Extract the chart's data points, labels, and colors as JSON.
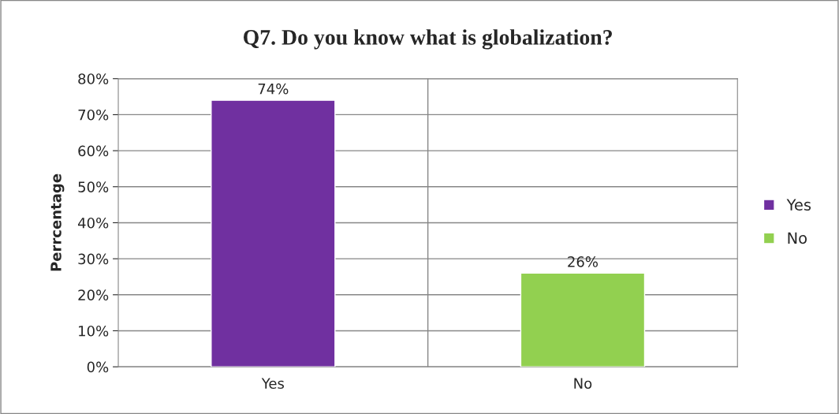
{
  "chart_data": {
    "type": "bar",
    "title": "Q7. Do you know what is globalization?",
    "ylabel": "Perrcentage",
    "categories": [
      "Yes",
      "No"
    ],
    "series": [
      {
        "name": "Yes",
        "color": "#7030a0",
        "values": [
          74,
          null
        ],
        "value_labels": [
          "74%",
          null
        ]
      },
      {
        "name": "No",
        "color": "#92d050",
        "values": [
          null,
          26
        ],
        "value_labels": [
          null,
          "26%"
        ]
      }
    ],
    "ylim": [
      0,
      80
    ],
    "yticks": [
      {
        "value": 0,
        "label": "0%"
      },
      {
        "value": 10,
        "label": "10%"
      },
      {
        "value": 20,
        "label": "20%"
      },
      {
        "value": 30,
        "label": "30%"
      },
      {
        "value": 40,
        "label": "40%"
      },
      {
        "value": 50,
        "label": "50%"
      },
      {
        "value": 60,
        "label": "60%"
      },
      {
        "value": 70,
        "label": "70%"
      },
      {
        "value": 80,
        "label": "80%"
      }
    ],
    "grid": true,
    "legend": "right"
  }
}
